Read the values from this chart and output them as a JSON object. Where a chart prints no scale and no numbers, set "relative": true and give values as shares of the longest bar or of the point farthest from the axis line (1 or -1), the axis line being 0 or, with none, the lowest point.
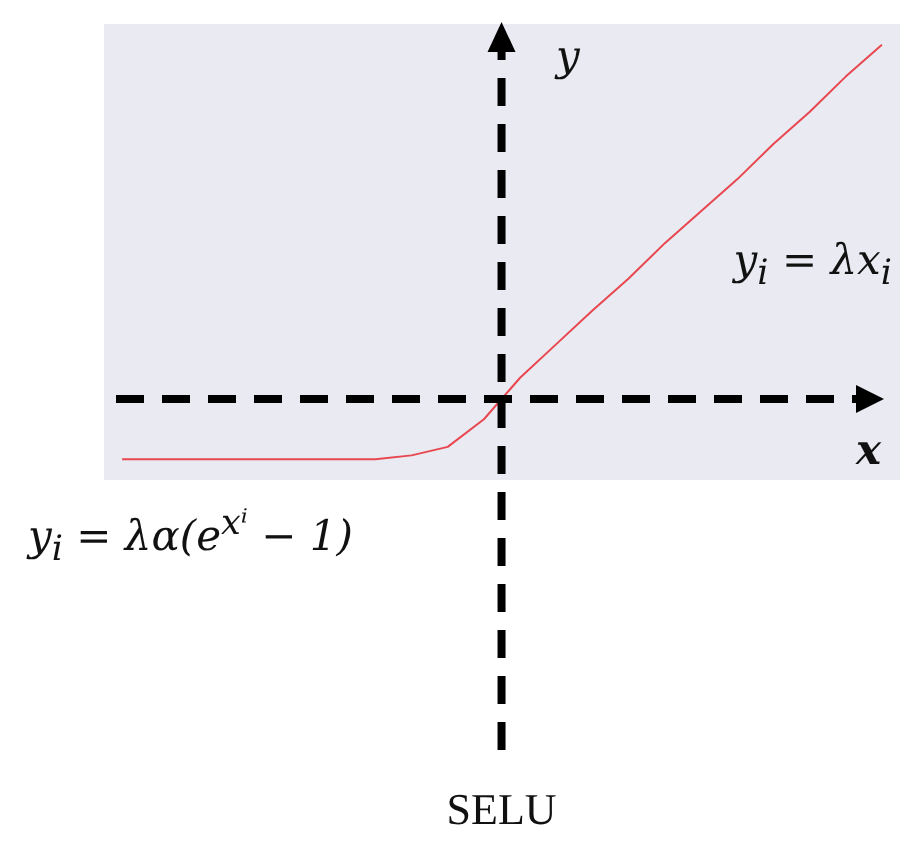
{
  "chart_data": {
    "type": "line",
    "title": "SELU",
    "xlabel": "x",
    "ylabel": "y",
    "relative": true,
    "annotations": [
      "y$_{i}$ = λx$_{i}$",
      "y$_{i}$ = λα(e$^{xⁱ}$ − 1)"
    ],
    "categories": [
      null,
      null,
      null,
      null,
      null,
      null,
      null,
      null,
      null,
      null,
      null,
      null,
      null,
      null,
      null,
      null,
      null,
      null,
      null,
      null,
      null,
      null
    ],
    "series": [
      {
        "color": "#e8474f",
        "values": [
          -0.17,
          -0.17,
          -0.17,
          -0.17,
          -0.17,
          -0.17,
          -0.17,
          -0.17,
          -0.159,
          -0.135,
          -0.057,
          0.06,
          0.155,
          0.25,
          0.34,
          0.44,
          0.53,
          0.62,
          0.72,
          0.81,
          0.91,
          1
        ]
      }
    ]
  }
}
